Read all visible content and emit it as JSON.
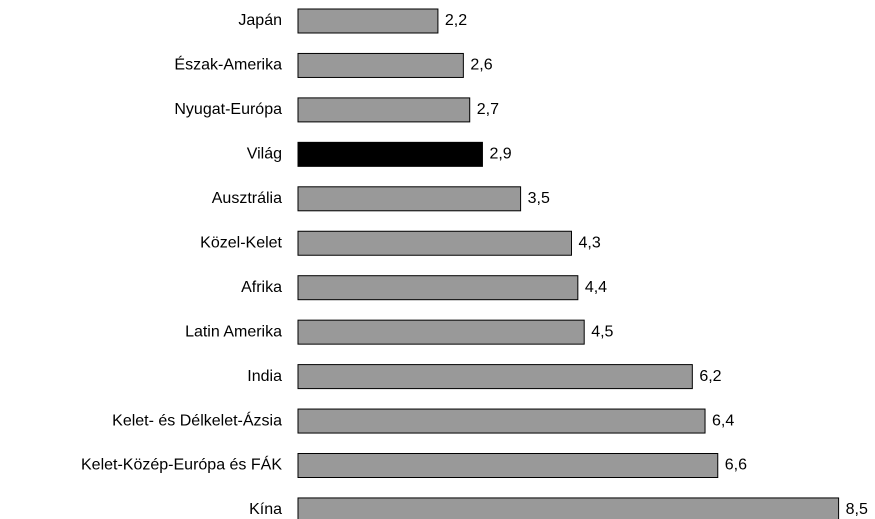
{
  "chart_data": {
    "type": "barh",
    "categories": [
      "Japán",
      "Észak-Amerika",
      "Nyugat-Európa",
      "Világ",
      "Ausztrália",
      "Közel-Kelet",
      "Afrika",
      "Latin Amerika",
      "India",
      "Kelet- és Délkelet-Ázsia",
      "Kelet-Közép-Európa és FÁK",
      "Kína"
    ],
    "values": [
      2.2,
      2.6,
      2.7,
      2.9,
      3.5,
      4.3,
      4.4,
      4.5,
      6.2,
      6.4,
      6.6,
      8.5
    ],
    "value_labels": [
      "2,2",
      "2,6",
      "2,7",
      "2,9",
      "3,5",
      "4,3",
      "4,4",
      "4,5",
      "6,2",
      "6,4",
      "6,6",
      "8,5"
    ],
    "colors": [
      "#999999",
      "#999999",
      "#999999",
      "#000000",
      "#999999",
      "#999999",
      "#999999",
      "#999999",
      "#999999",
      "#999999",
      "#999999",
      "#999999"
    ]
  }
}
